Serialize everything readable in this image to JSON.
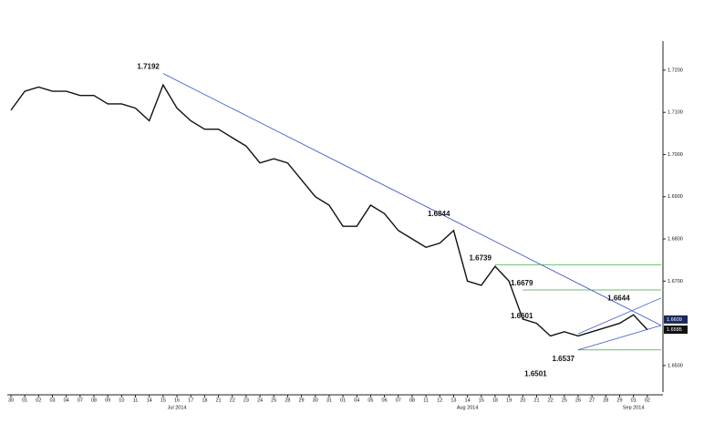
{
  "chart_data": {
    "type": "line",
    "categories": [
      "30",
      "01",
      "02",
      "03",
      "04",
      "07",
      "08",
      "09",
      "10",
      "11",
      "14",
      "15",
      "16",
      "17",
      "18",
      "21",
      "22",
      "23",
      "24",
      "25",
      "28",
      "29",
      "30",
      "31",
      "01",
      "04",
      "05",
      "06",
      "07",
      "08",
      "11",
      "12",
      "13",
      "14",
      "15",
      "18",
      "19",
      "20",
      "21",
      "22",
      "25",
      "26",
      "27",
      "28",
      "29",
      "01",
      "02"
    ],
    "months": [
      {
        "index": 12,
        "label": "Jul 2014"
      },
      {
        "index": 33,
        "label": "Aug 2014"
      },
      {
        "index": 45,
        "label": "Sep 2014"
      }
    ],
    "series": [
      {
        "color": "#111111",
        "values": [
          1.7105,
          1.715,
          1.716,
          1.715,
          1.715,
          1.714,
          1.714,
          1.712,
          1.712,
          1.711,
          1.708,
          1.7165,
          1.711,
          1.708,
          1.706,
          1.706,
          1.704,
          1.702,
          1.698,
          1.699,
          1.698,
          1.694,
          1.69,
          1.688,
          1.683,
          1.683,
          1.688,
          1.686,
          1.682,
          1.68,
          1.678,
          1.679,
          1.682,
          1.67,
          1.669,
          1.6735,
          1.67,
          1.661,
          1.66,
          1.657,
          1.658,
          1.657,
          1.658,
          1.659,
          1.66,
          1.662,
          1.6585
        ]
      }
    ],
    "ylim": [
      1.6437,
      1.7269
    ],
    "yticks": [
      {
        "value": 1.65,
        "label": "1.6500"
      },
      {
        "value": 1.67,
        "label": "1.6700"
      },
      {
        "value": 1.68,
        "label": "1.6800"
      },
      {
        "value": 1.69,
        "label": "1.6900"
      },
      {
        "value": 1.7,
        "label": "1.7000"
      },
      {
        "value": 1.71,
        "label": "1.7100"
      },
      {
        "value": 1.72,
        "label": "1.7200"
      }
    ],
    "annotations": [
      {
        "index": 11,
        "value": 1.7192,
        "label": "1.7192"
      },
      {
        "index": 32,
        "value": 1.6844,
        "label": "1.6844"
      },
      {
        "index": 35,
        "value": 1.6739,
        "label": "1.6739"
      },
      {
        "index": 38,
        "value": 1.6679,
        "label": "1.6679"
      },
      {
        "index": 45,
        "value": 1.6644,
        "label": "1.6644"
      },
      {
        "index": 38,
        "value": 1.6601,
        "label": "1.6601"
      },
      {
        "index": 41,
        "value": 1.6537,
        "label": "1.6537"
      },
      {
        "index": 39,
        "value": 1.6501,
        "label": "1.6501"
      }
    ],
    "lines": [
      {
        "from": [
          11,
          1.7192
        ],
        "to": [
          47,
          1.6595
        ],
        "color": "#3a55c8"
      },
      {
        "from": [
          35,
          1.6739
        ],
        "to": [
          47,
          1.6739
        ],
        "color": "#3aa63a"
      },
      {
        "from": [
          37,
          1.6679
        ],
        "to": [
          47,
          1.6679
        ],
        "color": "#3aa63a"
      },
      {
        "from": [
          41,
          1.6537
        ],
        "to": [
          47,
          1.6537
        ],
        "color": "#3aa63a"
      },
      {
        "from": [
          41,
          1.6575
        ],
        "to": [
          47,
          1.666
        ],
        "color": "#3a55c8"
      },
      {
        "from": [
          41,
          1.6537
        ],
        "to": [
          47,
          1.6595
        ],
        "color": "#3a55c8"
      }
    ],
    "price_tags": [
      {
        "value": 1.6609,
        "label": "1.6609",
        "color": "#1c2a5a"
      },
      {
        "value": 1.6585,
        "label": "1.6585",
        "color": "#111111"
      }
    ]
  }
}
